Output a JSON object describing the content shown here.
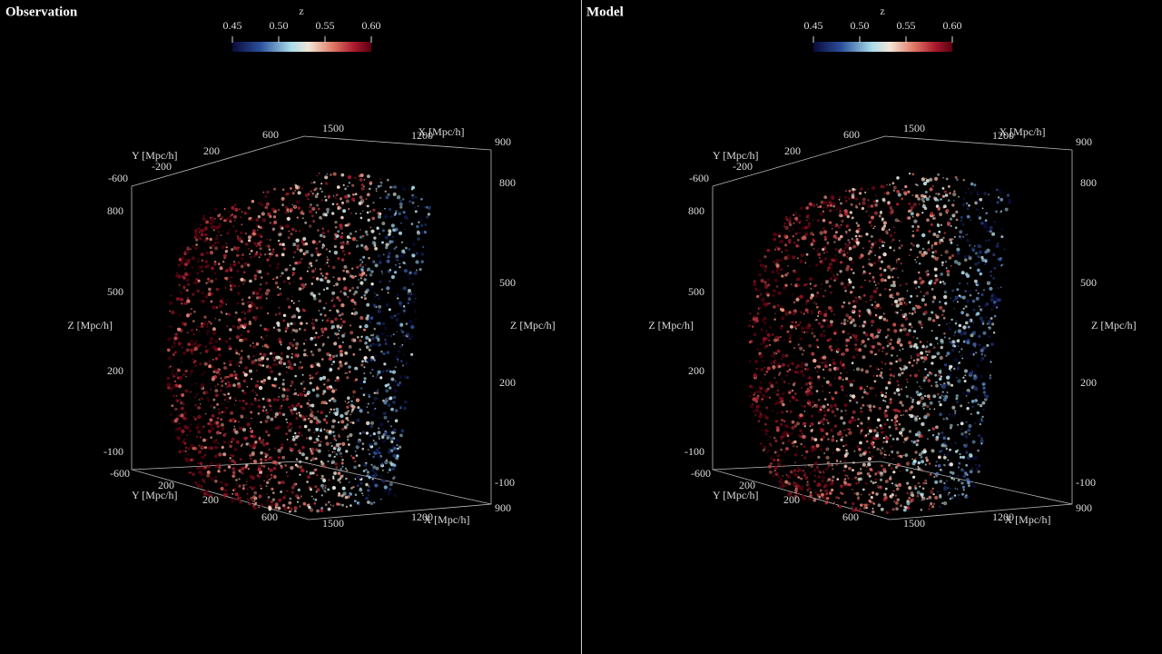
{
  "panels": [
    {
      "title": "Observation",
      "colorbar": {
        "label": "z",
        "ticks": [
          "0.45",
          "0.50",
          "0.55",
          "0.60"
        ]
      },
      "axis_labels": [
        "Y [Mpc/h]",
        "600",
        "200",
        "-200",
        "-600",
        "1500",
        "1200",
        "X [Mpc/h]",
        "900",
        "800",
        "500",
        "Z [Mpc/h]",
        "200",
        "-100",
        "900",
        "800",
        "500",
        "Z [Mpc/h]",
        "200",
        "-100",
        "-600",
        "Y [Mpc/h]",
        "200",
        "200",
        "600",
        "1500",
        "1200",
        "X [Mpc/h]"
      ]
    },
    {
      "title": "Model",
      "colorbar": {
        "label": "z",
        "ticks": [
          "0.45",
          "0.50",
          "0.55",
          "0.60"
        ]
      },
      "axis_labels": [
        "Y [Mpc/h]",
        "600",
        "200",
        "-200",
        "-600",
        "1500",
        "1200",
        "X [Mpc/h]",
        "900",
        "800",
        "500",
        "Z [Mpc/h]",
        "200",
        "-100",
        "900",
        "800",
        "500",
        "Z [Mpc/h]",
        "200",
        "-100",
        "-600",
        "Y [Mpc/h]",
        "200",
        "200",
        "600",
        "1500",
        "1200",
        "X [Mpc/h]"
      ]
    }
  ]
}
